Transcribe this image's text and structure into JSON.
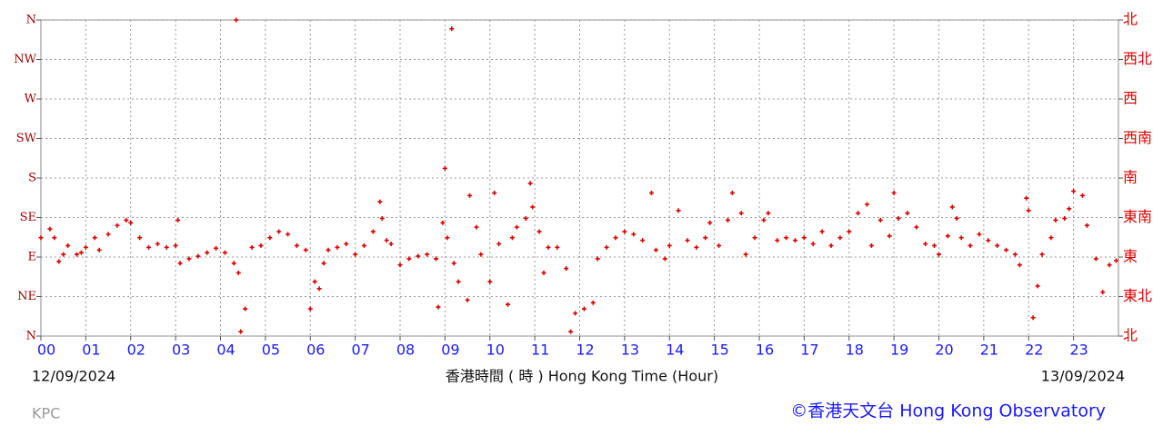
{
  "chart_data": {
    "type": "scatter",
    "color": "#dd0000",
    "x_label": "香港時間 ( 時 )  Hong Kong Time (Hour)",
    "start_date": "12/09/2024",
    "end_date": "13/09/2024",
    "station": "KPC",
    "credit": "©香港天文台 Hong Kong Observatory",
    "grid": true,
    "xlim": [
      0,
      24
    ],
    "xticks": [
      {
        "value": 0,
        "label": "00"
      },
      {
        "value": 1,
        "label": "01"
      },
      {
        "value": 2,
        "label": "02"
      },
      {
        "value": 3,
        "label": "03"
      },
      {
        "value": 4,
        "label": "04"
      },
      {
        "value": 5,
        "label": "05"
      },
      {
        "value": 6,
        "label": "06"
      },
      {
        "value": 7,
        "label": "07"
      },
      {
        "value": 8,
        "label": "08"
      },
      {
        "value": 9,
        "label": "09"
      },
      10,
      11,
      12,
      13,
      14,
      15,
      16,
      17,
      18,
      19,
      20,
      21,
      22,
      23
    ],
    "ylim": [
      0,
      360
    ],
    "yticks": [
      {
        "value": 0,
        "label": "N"
      },
      {
        "value": 45,
        "label": "NE"
      },
      {
        "value": 90,
        "label": "E"
      },
      {
        "value": 135,
        "label": "SE"
      },
      {
        "value": 180,
        "label": "S"
      },
      {
        "value": 225,
        "label": "SW"
      },
      {
        "value": 270,
        "label": "W"
      },
      {
        "value": 315,
        "label": "NW"
      },
      {
        "value": 360,
        "label": "N"
      }
    ],
    "y2lim": [
      0,
      360
    ],
    "y2ticks": [
      {
        "value": 0,
        "label": "北"
      },
      {
        "value": 45,
        "label": "東北"
      },
      {
        "value": 90,
        "label": "東"
      },
      {
        "value": 135,
        "label": "東南"
      },
      {
        "value": 180,
        "label": "南"
      },
      {
        "value": 225,
        "label": "西南"
      },
      {
        "value": 270,
        "label": "西"
      },
      {
        "value": 315,
        "label": "西北"
      },
      {
        "value": 360,
        "label": "北"
      }
    ],
    "x": [
      0.0,
      0.2,
      0.3,
      0.4,
      0.5,
      0.6,
      0.8,
      0.9,
      1.0,
      1.2,
      1.3,
      1.5,
      1.7,
      1.9,
      2.0,
      2.2,
      2.4,
      2.6,
      2.8,
      3.0,
      3.05,
      3.1,
      3.3,
      3.5,
      3.7,
      3.9,
      4.1,
      4.3,
      4.35,
      4.4,
      4.45,
      4.55,
      4.7,
      4.9,
      5.1,
      5.3,
      5.5,
      5.7,
      5.9,
      6.0,
      6.1,
      6.2,
      6.3,
      6.4,
      6.6,
      6.8,
      7.0,
      7.2,
      7.4,
      7.55,
      7.6,
      7.7,
      7.8,
      8.0,
      8.2,
      8.4,
      8.6,
      8.8,
      8.85,
      8.95,
      9.0,
      9.05,
      9.15,
      9.2,
      9.3,
      9.5,
      9.55,
      9.7,
      9.8,
      10.0,
      10.1,
      10.2,
      10.4,
      10.5,
      10.6,
      10.8,
      10.9,
      10.95,
      11.1,
      11.2,
      11.3,
      11.5,
      11.7,
      11.8,
      11.9,
      12.1,
      12.3,
      12.4,
      12.6,
      12.8,
      13.0,
      13.2,
      13.4,
      13.6,
      13.7,
      13.9,
      14.0,
      14.2,
      14.4,
      14.6,
      14.8,
      14.9,
      15.1,
      15.3,
      15.4,
      15.6,
      15.7,
      15.9,
      16.1,
      16.2,
      16.4,
      16.6,
      16.8,
      17.0,
      17.2,
      17.4,
      17.6,
      17.8,
      18.0,
      18.2,
      18.4,
      18.5,
      18.7,
      18.9,
      19.0,
      19.1,
      19.3,
      19.5,
      19.7,
      19.9,
      20.0,
      20.2,
      20.3,
      20.4,
      20.5,
      20.7,
      20.9,
      21.1,
      21.3,
      21.5,
      21.7,
      21.8,
      21.95,
      22.0,
      22.1,
      22.2,
      22.3,
      22.5,
      22.6,
      22.8,
      22.9,
      23.0,
      23.2,
      23.3,
      23.5,
      23.65,
      23.8,
      23.95
    ],
    "values": [
      112,
      122,
      112,
      85,
      93,
      103,
      93,
      95,
      101,
      112,
      98,
      116,
      126,
      132,
      129,
      112,
      101,
      105,
      101,
      103,
      132,
      83,
      88,
      91,
      95,
      100,
      95,
      83,
      360,
      72,
      5,
      31,
      101,
      103,
      112,
      119,
      116,
      103,
      98,
      31,
      62,
      54,
      83,
      98,
      101,
      105,
      93,
      103,
      119,
      153,
      134,
      109,
      105,
      81,
      88,
      91,
      93,
      88,
      33,
      129,
      191,
      112,
      350,
      83,
      62,
      41,
      160,
      124,
      93,
      62,
      163,
      105,
      36,
      112,
      124,
      134,
      174,
      147,
      119,
      72,
      101,
      101,
      77,
      5,
      26,
      31,
      38,
      88,
      101,
      112,
      119,
      116,
      109,
      163,
      98,
      88,
      103,
      143,
      109,
      101,
      112,
      129,
      103,
      132,
      163,
      140,
      93,
      112,
      132,
      140,
      109,
      112,
      109,
      112,
      105,
      119,
      103,
      112,
      119,
      140,
      150,
      103,
      132,
      114,
      163,
      134,
      140,
      124,
      105,
      103,
      93,
      114,
      147,
      134,
      112,
      103,
      116,
      109,
      103,
      98,
      93,
      81,
      157,
      143,
      21,
      57,
      93,
      112,
      132,
      134,
      145,
      165,
      160,
      126,
      88,
      50,
      81,
      86
    ]
  }
}
